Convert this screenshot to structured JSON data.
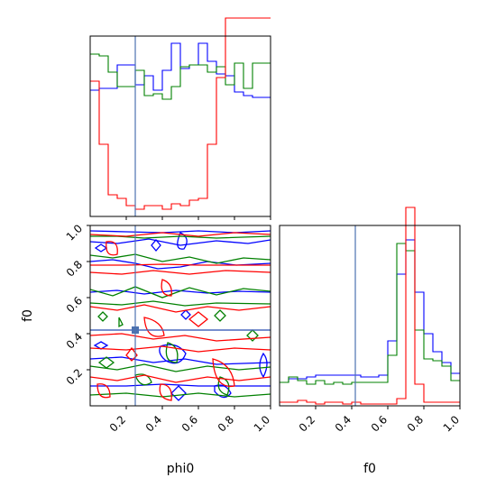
{
  "chart_data": [
    {
      "panel": "top-left",
      "type": "histogram",
      "parameter": "phi0",
      "xlim": [
        0.0,
        1.0
      ],
      "truth_value": 0.25,
      "y_ticks_shown": false,
      "series": [
        {
          "color": "#0000ff",
          "bins": [
            0.0,
            0.05,
            0.1,
            0.15,
            0.2,
            0.25,
            0.3,
            0.35,
            0.4,
            0.45,
            0.5,
            0.55,
            0.6,
            0.65,
            0.7,
            0.75,
            0.8,
            0.85,
            0.9,
            0.95,
            1.0
          ],
          "heights": [
            0.7,
            0.71,
            0.71,
            0.84,
            0.84,
            0.73,
            0.78,
            0.7,
            0.81,
            0.96,
            0.82,
            0.84,
            0.96,
            0.86,
            0.79,
            0.78,
            0.69,
            0.67,
            0.66,
            0.66
          ]
        },
        {
          "color": "#008000",
          "bins": [
            0.0,
            0.05,
            0.1,
            0.15,
            0.2,
            0.25,
            0.3,
            0.35,
            0.4,
            0.45,
            0.5,
            0.55,
            0.6,
            0.65,
            0.7,
            0.75,
            0.8,
            0.85,
            0.9,
            0.95,
            1.0
          ],
          "heights": [
            0.9,
            0.89,
            0.8,
            0.72,
            0.72,
            0.81,
            0.67,
            0.68,
            0.65,
            0.72,
            0.83,
            0.84,
            0.84,
            0.8,
            0.83,
            0.73,
            0.85,
            0.71,
            0.85,
            0.85
          ]
        },
        {
          "color": "#ff0000",
          "bins": [
            0.0,
            0.05,
            0.1,
            0.15,
            0.2,
            0.25,
            0.3,
            0.35,
            0.4,
            0.45,
            0.5,
            0.55,
            0.6,
            0.65,
            0.7,
            0.75,
            0.8,
            0.85,
            0.9,
            0.95,
            1.0
          ],
          "heights": [
            0.75,
            0.4,
            0.12,
            0.1,
            0.06,
            0.04,
            0.06,
            0.06,
            0.04,
            0.07,
            0.06,
            0.09,
            0.1,
            0.4,
            0.77,
            1.1,
            1.1,
            1.1,
            1.1,
            1.1
          ]
        }
      ]
    },
    {
      "panel": "bottom-left",
      "type": "contour",
      "x_parameter": "phi0",
      "y_parameter": "f0",
      "xlim": [
        0.0,
        1.0
      ],
      "ylim": [
        0.0,
        1.0
      ],
      "xticks": [
        "0.2",
        "0.4",
        "0.6",
        "0.8",
        "1.0"
      ],
      "yticks": [
        "0.2",
        "0.4",
        "0.6",
        "0.8",
        "1.0"
      ],
      "xlabel": "phi0",
      "ylabel": "f0",
      "truth_point": [
        0.25,
        0.42
      ],
      "series_colors": [
        "#0000ff",
        "#008000",
        "#ff0000"
      ]
    },
    {
      "panel": "bottom-right",
      "type": "histogram",
      "parameter": "f0",
      "xlim": [
        0.0,
        1.0
      ],
      "xticks": [
        "0.2",
        "0.4",
        "0.6",
        "0.8",
        "1.0"
      ],
      "xlabel": "f0",
      "truth_value": 0.42,
      "y_ticks_shown": false,
      "series": [
        {
          "color": "#0000ff",
          "bins": [
            0.0,
            0.05,
            0.1,
            0.15,
            0.2,
            0.25,
            0.3,
            0.35,
            0.4,
            0.45,
            0.5,
            0.55,
            0.6,
            0.65,
            0.7,
            0.75,
            0.8,
            0.85,
            0.9,
            0.95,
            1.0
          ],
          "heights": [
            0.13,
            0.15,
            0.15,
            0.16,
            0.17,
            0.17,
            0.17,
            0.17,
            0.17,
            0.16,
            0.16,
            0.17,
            0.36,
            0.73,
            0.92,
            0.63,
            0.4,
            0.3,
            0.24,
            0.18
          ]
        },
        {
          "color": "#008000",
          "bins": [
            0.0,
            0.05,
            0.1,
            0.15,
            0.2,
            0.25,
            0.3,
            0.35,
            0.4,
            0.45,
            0.5,
            0.55,
            0.6,
            0.65,
            0.7,
            0.75,
            0.8,
            0.85,
            0.9,
            0.95,
            1.0
          ],
          "heights": [
            0.13,
            0.16,
            0.14,
            0.12,
            0.14,
            0.12,
            0.13,
            0.12,
            0.13,
            0.13,
            0.13,
            0.13,
            0.28,
            0.9,
            0.86,
            0.42,
            0.26,
            0.25,
            0.22,
            0.14
          ]
        },
        {
          "color": "#ff0000",
          "bins": [
            0.0,
            0.05,
            0.1,
            0.15,
            0.2,
            0.25,
            0.3,
            0.35,
            0.4,
            0.45,
            0.5,
            0.55,
            0.6,
            0.65,
            0.7,
            0.75,
            0.8,
            0.85,
            0.9,
            0.95,
            1.0
          ],
          "heights": [
            0.02,
            0.02,
            0.03,
            0.02,
            0.01,
            0.02,
            0.02,
            0.01,
            0.02,
            0.01,
            0.01,
            0.01,
            0.01,
            0.04,
            1.1,
            0.12,
            0.02,
            0.02,
            0.02,
            0.02
          ]
        }
      ]
    }
  ]
}
